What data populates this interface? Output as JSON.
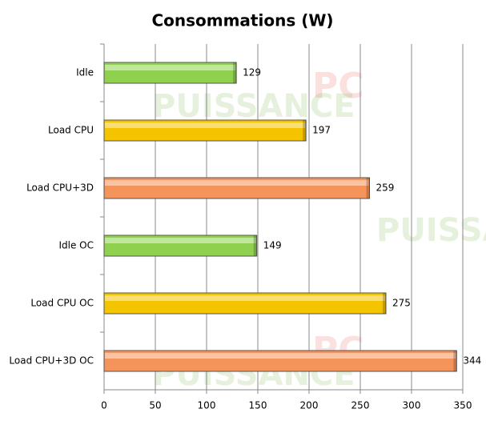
{
  "chart_data": {
    "type": "barh",
    "title": "Consommations (W)",
    "categories": [
      "Idle",
      "Load CPU",
      "Load CPU+3D",
      "Idle OC",
      "Load CPU OC",
      "Load CPU+3D OC"
    ],
    "values": [
      129,
      197,
      259,
      149,
      275,
      344
    ],
    "colors": [
      "#8fd14f",
      "#f5c400",
      "#f5945a",
      "#8fd14f",
      "#f5c400",
      "#f5945a"
    ],
    "xlim": [
      0,
      350
    ],
    "xticks": [
      0,
      50,
      100,
      150,
      200,
      250,
      300,
      350
    ],
    "grid": true,
    "watermark": [
      "PUISSANCE",
      "PC"
    ]
  }
}
